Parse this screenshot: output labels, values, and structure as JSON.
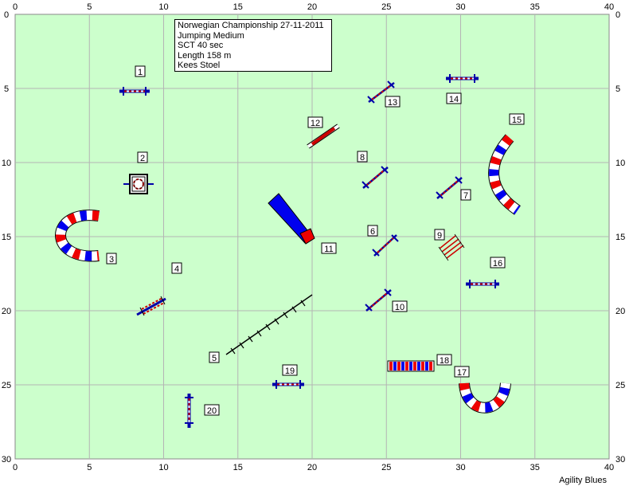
{
  "course_info": {
    "lines": [
      "Norwegian Championship 27-11-2011",
      "Jumping Medium",
      "SCT 40 sec",
      "Length 158 m",
      "Kees Stoel"
    ]
  },
  "axes": {
    "x_ticks": [
      "0",
      "5",
      "10",
      "15",
      "20",
      "25",
      "30",
      "35",
      "40"
    ],
    "y_ticks": [
      "0",
      "5",
      "10",
      "15",
      "20",
      "25",
      "30"
    ],
    "x_range": [
      0,
      40
    ],
    "y_range": [
      0,
      30
    ],
    "grid": true
  },
  "footer": "Agility Blues",
  "colors": {
    "field": "#ccffcc",
    "grid": "#b4b4b4",
    "jump_pole": "#cc0000",
    "jump_wing": "#0000aa",
    "tunnel_red": "#ee0000",
    "tunnel_blue": "#0000ee"
  },
  "obstacles": [
    {
      "number": "1",
      "type": "jump",
      "x": 8.3,
      "y": 5.0
    },
    {
      "number": "2",
      "type": "tire",
      "x": 8.6,
      "y": 11.4
    },
    {
      "number": "3",
      "type": "tunnel",
      "x": 5.0,
      "y": 15.0
    },
    {
      "number": "4",
      "type": "double-jump",
      "x": 9.2,
      "y": 19.6
    },
    {
      "number": "5",
      "type": "dogwalk",
      "x": 17.0,
      "y": 21.0
    },
    {
      "number": "6",
      "type": "jump",
      "x": 25.0,
      "y": 15.6
    },
    {
      "number": "7",
      "type": "jump",
      "x": 30.0,
      "y": 11.8
    },
    {
      "number": "8",
      "type": "jump",
      "x": 24.8,
      "y": 11.0
    },
    {
      "number": "9",
      "type": "broad-jump",
      "x": 29.6,
      "y": 15.3
    },
    {
      "number": "10",
      "type": "jump",
      "x": 25.0,
      "y": 19.3
    },
    {
      "number": "11",
      "type": "collapsed-tunnel",
      "x": 18.0,
      "y": 14.0
    },
    {
      "number": "12",
      "type": "wall",
      "x": 20.8,
      "y": 8.3
    },
    {
      "number": "13",
      "type": "jump",
      "x": 25.0,
      "y": 5.3
    },
    {
      "number": "14",
      "type": "jump",
      "x": 30.0,
      "y": 4.2
    },
    {
      "number": "15",
      "type": "tunnel",
      "x": 33.0,
      "y": 11.0
    },
    {
      "number": "16",
      "type": "jump",
      "x": 31.3,
      "y": 18.2
    },
    {
      "number": "17",
      "type": "tunnel",
      "x": 31.0,
      "y": 25.6
    },
    {
      "number": "18",
      "type": "weave-poles",
      "x": 26.9,
      "y": 23.8
    },
    {
      "number": "19",
      "type": "jump",
      "x": 18.7,
      "y": 25.0
    },
    {
      "number": "20",
      "type": "jump",
      "x": 11.8,
      "y": 26.6
    }
  ]
}
